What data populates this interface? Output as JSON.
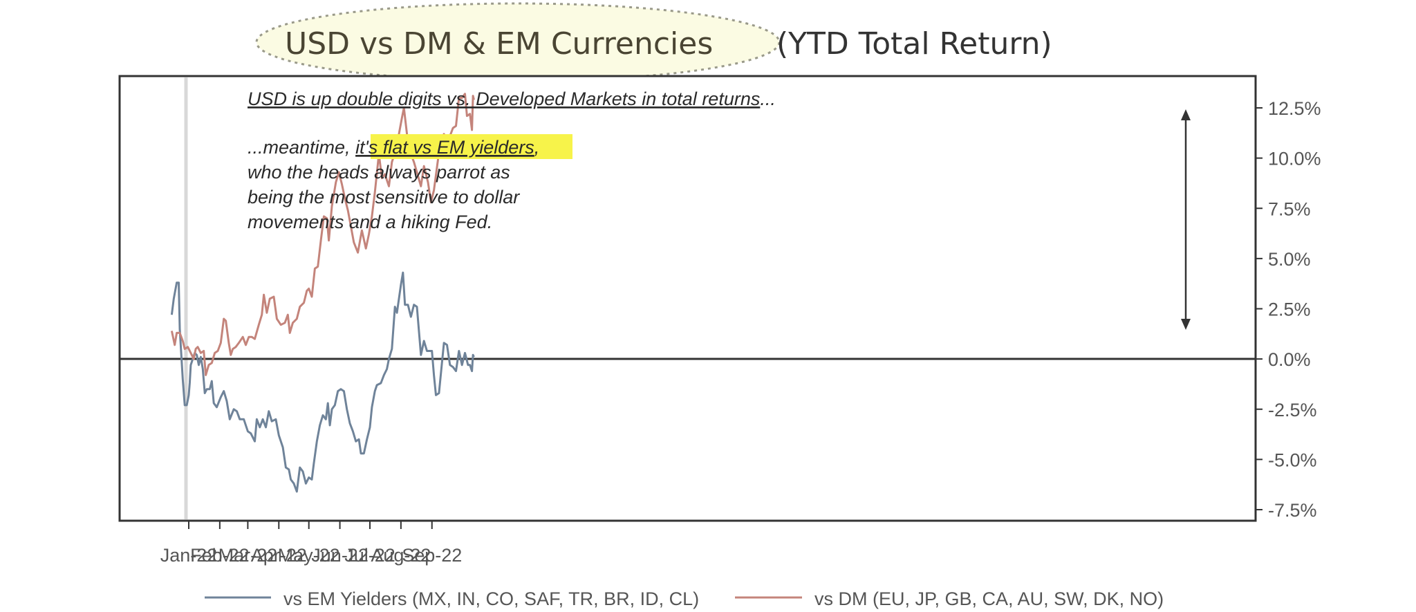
{
  "chart_data": {
    "type": "line",
    "title": "USD vs DM & EM Currencies",
    "subtitle": "(YTD Total Return)",
    "ylim": [
      -7.5,
      12.5
    ],
    "y_ticks": [
      "12.5%",
      "10.0%",
      "7.5%",
      "5.0%",
      "2.5%",
      "0.0%",
      "-2.5%",
      "-5.0%",
      "-7.5%"
    ],
    "x_ticks": [
      "Jan-22",
      "Feb-22",
      "Mar-22",
      "Apr-22",
      "May-22",
      "Jun-22",
      "Jul-22",
      "Aug-22",
      "Sep-22"
    ],
    "annotations": {
      "line1": "USD is up double digits vs. Developed Markets in total returns",
      "line1_tail": "...",
      "line2_pre": "...meantime, ",
      "line2_highlight": "it's flat vs EM yielders",
      "line2_post": ",",
      "line3": "who the heads always parrot as",
      "line4": "being the most sensitive to dollar",
      "line5": "movements and a hiking Fed."
    },
    "series": [
      {
        "name": "vs EM Yielders (MX, IN, CO, SAF, TR, BR, ID, CL)",
        "color": "#6f8399",
        "values": [
          [
            "2021-12-15",
            2.2
          ],
          [
            "2021-12-17",
            3.0
          ],
          [
            "2021-12-20",
            3.8
          ],
          [
            "2021-12-22",
            3.8
          ],
          [
            "2021-12-23",
            1.5
          ],
          [
            "2021-12-26",
            -1.0
          ],
          [
            "2021-12-28",
            -2.3
          ],
          [
            "2021-12-30",
            -2.3
          ],
          [
            "2022-01-01",
            -1.8
          ],
          [
            "2022-01-02",
            -1.2
          ],
          [
            "2022-01-03",
            -0.3
          ],
          [
            "2022-01-05",
            0.0
          ],
          [
            "2022-01-07",
            0.3
          ],
          [
            "2022-01-09",
            0.2
          ],
          [
            "2022-01-11",
            -0.3
          ],
          [
            "2022-01-13",
            0.1
          ],
          [
            "2022-01-15",
            -0.5
          ],
          [
            "2022-01-17",
            -1.7
          ],
          [
            "2022-01-19",
            -1.5
          ],
          [
            "2022-01-22",
            -1.5
          ],
          [
            "2022-01-24",
            -1.1
          ],
          [
            "2022-01-26",
            -2.2
          ],
          [
            "2022-01-29",
            -2.4
          ],
          [
            "2022-02-02",
            -1.9
          ],
          [
            "2022-02-05",
            -1.6
          ],
          [
            "2022-02-08",
            -2.1
          ],
          [
            "2022-02-11",
            -3.0
          ],
          [
            "2022-02-15",
            -2.5
          ],
          [
            "2022-02-18",
            -2.6
          ],
          [
            "2022-02-21",
            -3.0
          ],
          [
            "2022-02-25",
            -3.0
          ],
          [
            "2022-03-01",
            -3.6
          ],
          [
            "2022-03-04",
            -3.7
          ],
          [
            "2022-03-08",
            -4.1
          ],
          [
            "2022-03-10",
            -3.0
          ],
          [
            "2022-03-13",
            -3.4
          ],
          [
            "2022-03-16",
            -3.0
          ],
          [
            "2022-03-19",
            -3.4
          ],
          [
            "2022-03-22",
            -2.6
          ],
          [
            "2022-03-25",
            -3.1
          ],
          [
            "2022-03-29",
            -3.0
          ],
          [
            "2022-04-01",
            -3.8
          ],
          [
            "2022-04-05",
            -4.4
          ],
          [
            "2022-04-08",
            -5.4
          ],
          [
            "2022-04-11",
            -5.5
          ],
          [
            "2022-04-13",
            -6.0
          ],
          [
            "2022-04-16",
            -6.2
          ],
          [
            "2022-04-19",
            -6.6
          ],
          [
            "2022-04-22",
            -5.4
          ],
          [
            "2022-04-25",
            -5.6
          ],
          [
            "2022-04-28",
            -6.2
          ],
          [
            "2022-05-01",
            -5.9
          ],
          [
            "2022-05-04",
            -6.0
          ],
          [
            "2022-05-06",
            -5.2
          ],
          [
            "2022-05-09",
            -4.1
          ],
          [
            "2022-05-12",
            -3.3
          ],
          [
            "2022-05-15",
            -2.8
          ],
          [
            "2022-05-18",
            -3.0
          ],
          [
            "2022-05-20",
            -2.2
          ],
          [
            "2022-05-22",
            -3.3
          ],
          [
            "2022-05-24",
            -2.5
          ],
          [
            "2022-05-27",
            -2.3
          ],
          [
            "2022-05-30",
            -1.6
          ],
          [
            "2022-06-02",
            -1.5
          ],
          [
            "2022-06-05",
            -1.6
          ],
          [
            "2022-06-08",
            -2.5
          ],
          [
            "2022-06-11",
            -3.2
          ],
          [
            "2022-06-14",
            -3.6
          ],
          [
            "2022-06-17",
            -4.1
          ],
          [
            "2022-06-20",
            -4.0
          ],
          [
            "2022-06-22",
            -4.7
          ],
          [
            "2022-06-25",
            -4.7
          ],
          [
            "2022-06-28",
            -4.0
          ],
          [
            "2022-07-01",
            -3.4
          ],
          [
            "2022-07-03",
            -2.4
          ],
          [
            "2022-07-06",
            -1.6
          ],
          [
            "2022-07-08",
            -1.3
          ],
          [
            "2022-07-12",
            -1.2
          ],
          [
            "2022-07-15",
            -0.8
          ],
          [
            "2022-07-18",
            -0.5
          ],
          [
            "2022-07-20",
            0.0
          ],
          [
            "2022-07-23",
            0.5
          ],
          [
            "2022-07-26",
            2.6
          ],
          [
            "2022-07-28",
            2.3
          ],
          [
            "2022-08-01",
            3.7
          ],
          [
            "2022-08-03",
            4.3
          ],
          [
            "2022-08-05",
            2.7
          ],
          [
            "2022-08-08",
            2.7
          ],
          [
            "2022-08-11",
            2.1
          ],
          [
            "2022-08-14",
            2.7
          ],
          [
            "2022-08-17",
            2.6
          ],
          [
            "2022-08-21",
            0.2
          ],
          [
            "2022-08-24",
            0.9
          ],
          [
            "2022-08-27",
            0.4
          ],
          [
            "2022-09-01",
            0.4
          ],
          [
            "2022-09-03",
            -0.8
          ],
          [
            "2022-09-05",
            -1.8
          ],
          [
            "2022-09-08",
            -1.7
          ],
          [
            "2022-09-11",
            -0.2
          ],
          [
            "2022-09-13",
            0.8
          ],
          [
            "2022-09-16",
            0.7
          ],
          [
            "2022-09-19",
            -0.3
          ],
          [
            "2022-09-22",
            -0.4
          ],
          [
            "2022-09-25",
            -0.6
          ],
          [
            "2022-09-28",
            0.4
          ],
          [
            "2022-10-01",
            -0.3
          ],
          [
            "2022-10-04",
            0.3
          ],
          [
            "2022-10-07",
            -0.3
          ],
          [
            "2022-10-09",
            -0.3
          ],
          [
            "2022-10-11",
            -0.6
          ],
          [
            "2022-10-12",
            0.2
          ],
          [
            "2022-10-13",
            0.1
          ]
        ]
      },
      {
        "name": "vs DM (EU, JP, GB, CA, AU, SW, DK, NO)",
        "color": "#c4847b",
        "values": [
          [
            "2021-12-15",
            1.4
          ],
          [
            "2021-12-18",
            0.7
          ],
          [
            "2021-12-20",
            1.3
          ],
          [
            "2021-12-23",
            1.3
          ],
          [
            "2021-12-26",
            0.9
          ],
          [
            "2021-12-28",
            0.5
          ],
          [
            "2021-12-31",
            0.6
          ],
          [
            "2022-01-03",
            0.3
          ],
          [
            "2022-01-06",
            0.0
          ],
          [
            "2022-01-08",
            0.5
          ],
          [
            "2022-01-10",
            0.6
          ],
          [
            "2022-01-13",
            0.3
          ],
          [
            "2022-01-16",
            0.4
          ],
          [
            "2022-01-18",
            -0.8
          ],
          [
            "2022-01-21",
            -0.3
          ],
          [
            "2022-01-24",
            -0.2
          ],
          [
            "2022-01-27",
            0.3
          ],
          [
            "2022-01-30",
            0.4
          ],
          [
            "2022-02-02",
            0.8
          ],
          [
            "2022-02-05",
            2.0
          ],
          [
            "2022-02-07",
            1.9
          ],
          [
            "2022-02-10",
            0.8
          ],
          [
            "2022-02-12",
            0.2
          ],
          [
            "2022-02-14",
            0.5
          ],
          [
            "2022-02-17",
            0.6
          ],
          [
            "2022-02-20",
            0.8
          ],
          [
            "2022-02-24",
            1.1
          ],
          [
            "2022-02-27",
            0.7
          ],
          [
            "2022-03-02",
            1.1
          ],
          [
            "2022-03-05",
            1.1
          ],
          [
            "2022-03-08",
            1.0
          ],
          [
            "2022-03-12",
            1.7
          ],
          [
            "2022-03-15",
            2.2
          ],
          [
            "2022-03-17",
            3.2
          ],
          [
            "2022-03-20",
            2.3
          ],
          [
            "2022-03-23",
            3.0
          ],
          [
            "2022-03-27",
            3.1
          ],
          [
            "2022-03-30",
            2.0
          ],
          [
            "2022-04-03",
            1.7
          ],
          [
            "2022-04-07",
            1.8
          ],
          [
            "2022-04-10",
            2.2
          ],
          [
            "2022-04-12",
            1.3
          ],
          [
            "2022-04-15",
            1.8
          ],
          [
            "2022-04-19",
            2.0
          ],
          [
            "2022-04-22",
            2.6
          ],
          [
            "2022-04-26",
            2.8
          ],
          [
            "2022-04-29",
            3.4
          ],
          [
            "2022-05-01",
            3.5
          ],
          [
            "2022-05-04",
            3.1
          ],
          [
            "2022-05-07",
            4.5
          ],
          [
            "2022-05-10",
            4.6
          ],
          [
            "2022-05-13",
            5.9
          ],
          [
            "2022-05-16",
            7.1
          ],
          [
            "2022-05-19",
            7.0
          ],
          [
            "2022-05-21",
            5.9
          ],
          [
            "2022-05-24",
            7.6
          ],
          [
            "2022-05-28",
            8.8
          ],
          [
            "2022-05-31",
            9.3
          ],
          [
            "2022-06-03",
            8.7
          ],
          [
            "2022-06-06",
            8.0
          ],
          [
            "2022-06-09",
            7.4
          ],
          [
            "2022-06-12",
            6.6
          ],
          [
            "2022-06-15",
            5.8
          ],
          [
            "2022-06-19",
            5.3
          ],
          [
            "2022-06-23",
            6.4
          ],
          [
            "2022-06-27",
            5.5
          ],
          [
            "2022-06-30",
            6.2
          ],
          [
            "2022-07-03",
            7.1
          ],
          [
            "2022-07-06",
            8.3
          ],
          [
            "2022-07-10",
            10.2
          ],
          [
            "2022-07-13",
            9.0
          ],
          [
            "2022-07-16",
            9.2
          ],
          [
            "2022-07-20",
            8.6
          ],
          [
            "2022-07-23",
            9.8
          ],
          [
            "2022-07-27",
            10.4
          ],
          [
            "2022-07-30",
            11.2
          ],
          [
            "2022-08-02",
            12.0
          ],
          [
            "2022-08-04",
            12.5
          ],
          [
            "2022-08-07",
            11.2
          ],
          [
            "2022-08-11",
            10.2
          ],
          [
            "2022-08-14",
            9.8
          ],
          [
            "2022-08-17",
            9.3
          ],
          [
            "2022-08-21",
            8.6
          ],
          [
            "2022-08-24",
            9.6
          ],
          [
            "2022-08-28",
            8.8
          ],
          [
            "2022-08-31",
            7.8
          ],
          [
            "2022-09-03",
            8.4
          ],
          [
            "2022-09-07",
            9.9
          ],
          [
            "2022-09-10",
            10.9
          ],
          [
            "2022-09-13",
            11.2
          ],
          [
            "2022-09-16",
            10.8
          ],
          [
            "2022-09-19",
            11.1
          ],
          [
            "2022-09-22",
            11.5
          ],
          [
            "2022-09-25",
            11.6
          ],
          [
            "2022-09-28",
            13.0
          ],
          [
            "2022-10-01",
            13.0
          ],
          [
            "2022-10-04",
            13.2
          ],
          [
            "2022-10-06",
            12.1
          ],
          [
            "2022-10-09",
            12.2
          ],
          [
            "2022-10-11",
            11.4
          ],
          [
            "2022-10-12",
            13.1
          ],
          [
            "2022-10-13",
            12.9
          ]
        ]
      }
    ],
    "legend": {
      "position": "bottom"
    },
    "zero_line": true
  }
}
